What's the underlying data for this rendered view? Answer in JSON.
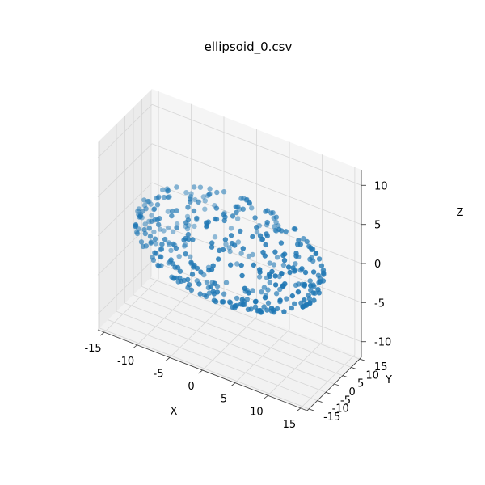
{
  "chart_data": {
    "type": "scatter3d",
    "title": "ellipsoid_0.csv",
    "xlabel": "X",
    "ylabel": "Y",
    "zlabel": "Z",
    "xlim": [
      -16,
      16
    ],
    "ylim": [
      -16,
      16
    ],
    "zlim": [
      -12,
      12
    ],
    "x_ticks": [
      -15,
      -10,
      -5,
      0,
      5,
      10,
      15
    ],
    "y_ticks": [
      -15,
      -10,
      -5,
      0,
      5,
      10,
      15
    ],
    "z_ticks": [
      -10,
      -5,
      0,
      5,
      10
    ],
    "grid": true,
    "marker_color": "#1f77b4",
    "shape": "ellipsoid surface sample",
    "semi_axes": {
      "x": 14,
      "y": 14,
      "z": 6
    },
    "n_points": 400
  }
}
